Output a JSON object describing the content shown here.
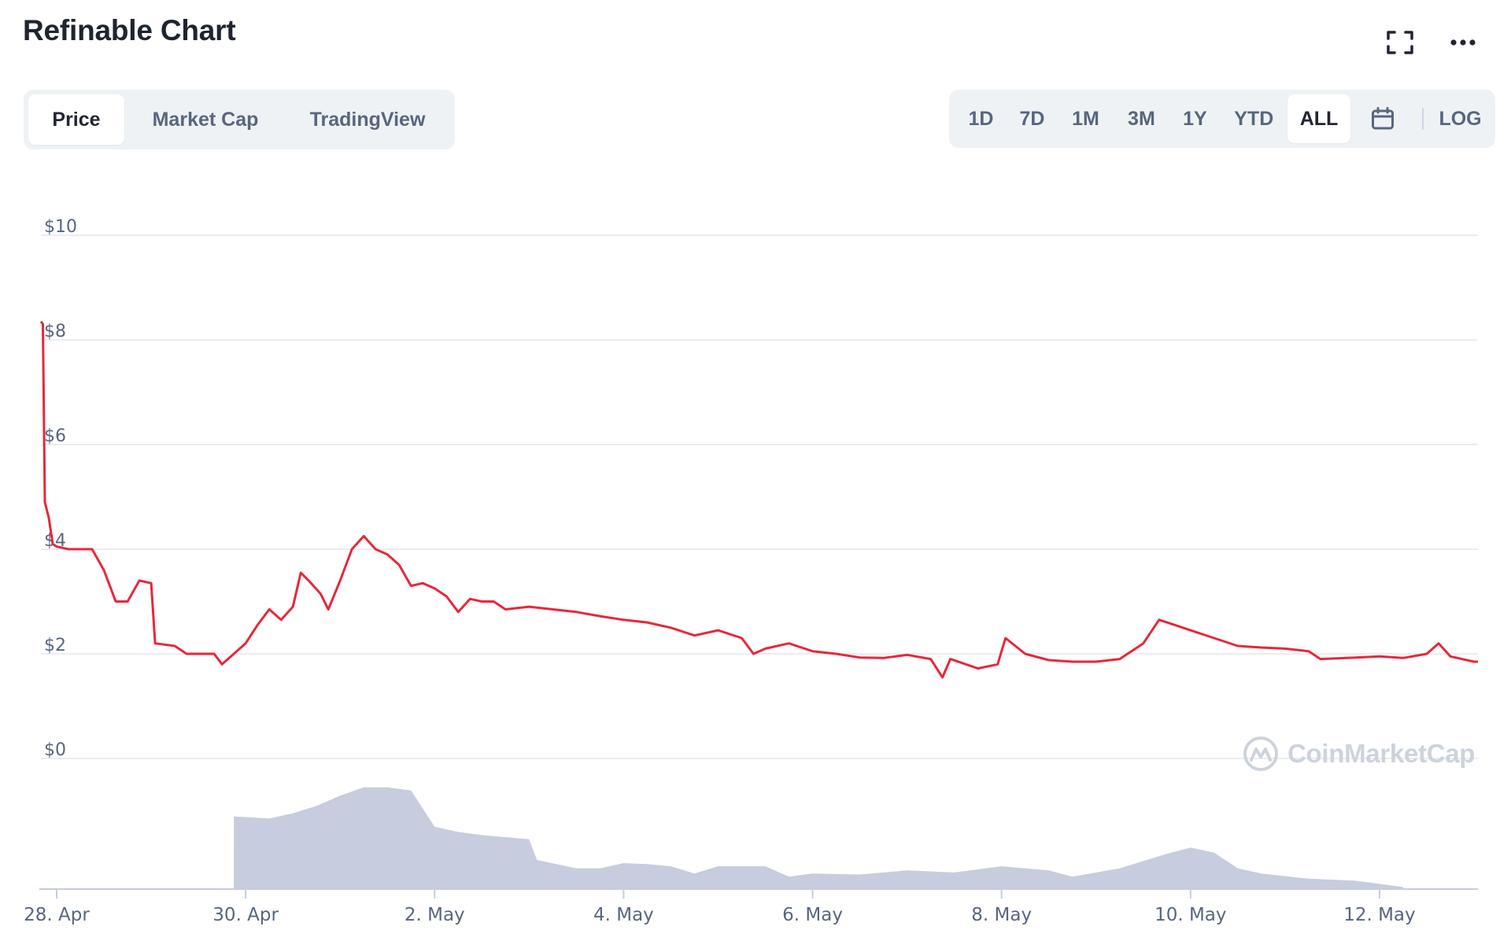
{
  "header": {
    "title": "Refinable Chart"
  },
  "tabs": [
    "Price",
    "Market Cap",
    "TradingView"
  ],
  "active_tab": "Price",
  "ranges": [
    "1D",
    "7D",
    "1M",
    "3M",
    "1Y",
    "YTD",
    "ALL"
  ],
  "active_range": "ALL",
  "scale_button": "LOG",
  "icons": {
    "fullscreen": "fullscreen-icon",
    "more": "more-dots-icon",
    "calendar": "calendar-icon"
  },
  "watermark": "CoinMarketCap",
  "colors": {
    "price_line": "#e6283a",
    "volume": "#c7ccdf",
    "grid": "#e4e7ee",
    "axis_text": "#58667e"
  },
  "chart_data": {
    "type": "line",
    "ylim": [
      0,
      10
    ],
    "y_ticks": [
      "$10",
      "$8",
      "$6",
      "$4",
      "$2",
      "$0"
    ],
    "x_ticks": [
      "28. Apr",
      "30. Apr",
      "2. May",
      "4. May",
      "6. May",
      "8. May",
      "10. May",
      "12. May"
    ],
    "x_start": "2021-04-27T20:00",
    "x_end": "2021-05-13T01:00",
    "grid": true,
    "series": [
      {
        "type": "line",
        "points": [
          [
            "2021-04-27T20:00",
            8.35
          ],
          [
            "2021-04-27T20:30",
            8.3
          ],
          [
            "2021-04-27T21:00",
            4.9
          ],
          [
            "2021-04-27T22:00",
            4.6
          ],
          [
            "2021-04-27T23:00",
            4.1
          ],
          [
            "2021-04-28T00:00",
            4.05
          ],
          [
            "2021-04-28T03:00",
            4.0
          ],
          [
            "2021-04-28T06:00",
            4.0
          ],
          [
            "2021-04-28T09:00",
            4.0
          ],
          [
            "2021-04-28T12:00",
            3.6
          ],
          [
            "2021-04-28T15:00",
            3.0
          ],
          [
            "2021-04-28T18:00",
            3.0
          ],
          [
            "2021-04-28T21:00",
            3.4
          ],
          [
            "2021-04-29T00:00",
            3.35
          ],
          [
            "2021-04-29T01:00",
            2.2
          ],
          [
            "2021-04-29T06:00",
            2.15
          ],
          [
            "2021-04-29T09:00",
            2.0
          ],
          [
            "2021-04-29T12:00",
            2.0
          ],
          [
            "2021-04-29T16:00",
            2.0
          ],
          [
            "2021-04-29T18:00",
            1.8
          ],
          [
            "2021-04-29T21:00",
            2.0
          ],
          [
            "2021-04-30T00:00",
            2.2
          ],
          [
            "2021-04-30T03:00",
            2.55
          ],
          [
            "2021-04-30T06:00",
            2.85
          ],
          [
            "2021-04-30T09:00",
            2.65
          ],
          [
            "2021-04-30T12:00",
            2.9
          ],
          [
            "2021-04-30T14:00",
            3.55
          ],
          [
            "2021-04-30T16:00",
            3.4
          ],
          [
            "2021-04-30T19:00",
            3.15
          ],
          [
            "2021-04-30T21:00",
            2.85
          ],
          [
            "2021-05-01T00:00",
            3.4
          ],
          [
            "2021-05-01T03:00",
            4.0
          ],
          [
            "2021-05-01T06:00",
            4.25
          ],
          [
            "2021-05-01T09:00",
            4.0
          ],
          [
            "2021-05-01T12:00",
            3.9
          ],
          [
            "2021-05-01T15:00",
            3.7
          ],
          [
            "2021-05-01T18:00",
            3.3
          ],
          [
            "2021-05-01T21:00",
            3.35
          ],
          [
            "2021-05-02T00:00",
            3.25
          ],
          [
            "2021-05-02T03:00",
            3.1
          ],
          [
            "2021-05-02T06:00",
            2.8
          ],
          [
            "2021-05-02T09:00",
            3.05
          ],
          [
            "2021-05-02T12:00",
            3.0
          ],
          [
            "2021-05-02T15:00",
            3.0
          ],
          [
            "2021-05-02T18:00",
            2.85
          ],
          [
            "2021-05-03T00:00",
            2.9
          ],
          [
            "2021-05-03T06:00",
            2.85
          ],
          [
            "2021-05-03T12:00",
            2.8
          ],
          [
            "2021-05-03T18:00",
            2.72
          ],
          [
            "2021-05-04T00:00",
            2.65
          ],
          [
            "2021-05-04T06:00",
            2.6
          ],
          [
            "2021-05-04T12:00",
            2.5
          ],
          [
            "2021-05-04T18:00",
            2.35
          ],
          [
            "2021-05-05T00:00",
            2.45
          ],
          [
            "2021-05-05T06:00",
            2.3
          ],
          [
            "2021-05-05T09:00",
            2.0
          ],
          [
            "2021-05-05T12:00",
            2.1
          ],
          [
            "2021-05-05T18:00",
            2.2
          ],
          [
            "2021-05-06T00:00",
            2.05
          ],
          [
            "2021-05-06T06:00",
            2.0
          ],
          [
            "2021-05-06T12:00",
            1.93
          ],
          [
            "2021-05-06T18:00",
            1.92
          ],
          [
            "2021-05-07T00:00",
            1.98
          ],
          [
            "2021-05-07T06:00",
            1.9
          ],
          [
            "2021-05-07T09:00",
            1.55
          ],
          [
            "2021-05-07T11:00",
            1.9
          ],
          [
            "2021-05-07T18:00",
            1.72
          ],
          [
            "2021-05-07T23:00",
            1.8
          ],
          [
            "2021-05-08T01:00",
            2.3
          ],
          [
            "2021-05-08T06:00",
            2.0
          ],
          [
            "2021-05-08T12:00",
            1.88
          ],
          [
            "2021-05-08T18:00",
            1.85
          ],
          [
            "2021-05-09T00:00",
            1.85
          ],
          [
            "2021-05-09T06:00",
            1.9
          ],
          [
            "2021-05-09T12:00",
            2.2
          ],
          [
            "2021-05-09T16:00",
            2.65
          ],
          [
            "2021-05-09T18:00",
            2.6
          ],
          [
            "2021-05-10T00:00",
            2.45
          ],
          [
            "2021-05-10T06:00",
            2.3
          ],
          [
            "2021-05-10T12:00",
            2.15
          ],
          [
            "2021-05-10T18:00",
            2.12
          ],
          [
            "2021-05-11T00:00",
            2.1
          ],
          [
            "2021-05-11T06:00",
            2.05
          ],
          [
            "2021-05-11T09:00",
            1.9
          ],
          [
            "2021-05-11T18:00",
            1.93
          ],
          [
            "2021-05-12T00:00",
            1.95
          ],
          [
            "2021-05-12T06:00",
            1.92
          ],
          [
            "2021-05-12T12:00",
            2.0
          ],
          [
            "2021-05-12T15:00",
            2.2
          ],
          [
            "2021-05-12T18:00",
            1.95
          ],
          [
            "2021-05-13T00:00",
            1.85
          ],
          [
            "2021-05-13T01:00",
            1.85
          ]
        ]
      },
      {
        "type": "area",
        "points": [
          [
            "2021-04-29T21:00",
            0.0
          ],
          [
            "2021-04-29T21:01",
            0.7
          ],
          [
            "2021-04-30T06:00",
            0.68
          ],
          [
            "2021-04-30T12:00",
            0.73
          ],
          [
            "2021-04-30T18:00",
            0.8
          ],
          [
            "2021-05-01T00:00",
            0.9
          ],
          [
            "2021-05-01T06:00",
            0.98
          ],
          [
            "2021-05-01T12:00",
            0.98
          ],
          [
            "2021-05-01T18:00",
            0.95
          ],
          [
            "2021-05-02T00:00",
            0.6
          ],
          [
            "2021-05-02T06:00",
            0.55
          ],
          [
            "2021-05-02T12:00",
            0.52
          ],
          [
            "2021-05-02T18:00",
            0.5
          ],
          [
            "2021-05-03T00:00",
            0.48
          ],
          [
            "2021-05-03T02:00",
            0.28
          ],
          [
            "2021-05-03T12:00",
            0.2
          ],
          [
            "2021-05-03T18:00",
            0.2
          ],
          [
            "2021-05-04T00:00",
            0.25
          ],
          [
            "2021-05-04T06:00",
            0.24
          ],
          [
            "2021-05-04T12:00",
            0.22
          ],
          [
            "2021-05-04T18:00",
            0.15
          ],
          [
            "2021-05-05T00:00",
            0.22
          ],
          [
            "2021-05-05T12:00",
            0.22
          ],
          [
            "2021-05-05T18:00",
            0.12
          ],
          [
            "2021-05-06T00:00",
            0.15
          ],
          [
            "2021-05-06T12:00",
            0.14
          ],
          [
            "2021-05-07T00:00",
            0.18
          ],
          [
            "2021-05-07T12:00",
            0.16
          ],
          [
            "2021-05-08T00:00",
            0.22
          ],
          [
            "2021-05-08T12:00",
            0.18
          ],
          [
            "2021-05-08T18:00",
            0.12
          ],
          [
            "2021-05-09T06:00",
            0.2
          ],
          [
            "2021-05-09T18:00",
            0.34
          ],
          [
            "2021-05-10T00:00",
            0.4
          ],
          [
            "2021-05-10T06:00",
            0.35
          ],
          [
            "2021-05-10T12:00",
            0.2
          ],
          [
            "2021-05-10T18:00",
            0.15
          ],
          [
            "2021-05-11T06:00",
            0.1
          ],
          [
            "2021-05-11T18:00",
            0.08
          ],
          [
            "2021-05-12T00:00",
            0.05
          ],
          [
            "2021-05-12T06:00",
            0.02
          ],
          [
            "2021-05-12T06:01",
            0.0
          ]
        ]
      }
    ]
  }
}
